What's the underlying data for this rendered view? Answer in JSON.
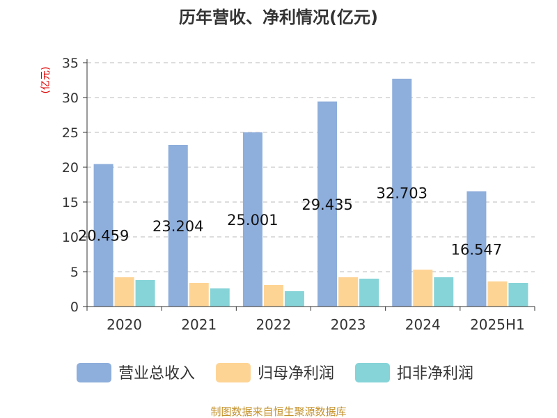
{
  "chart_data": {
    "type": "bar",
    "title": "历年营收、净利情况(亿元)",
    "ylabel": "(亿元)",
    "categories": [
      "2020",
      "2021",
      "2022",
      "2023",
      "2024",
      "2025H1"
    ],
    "ylim": [
      0,
      35
    ],
    "yticks": [
      "0",
      "5",
      "10",
      "15",
      "20",
      "25",
      "30",
      "35"
    ],
    "grid": true,
    "legend_position": "bottom",
    "series": [
      {
        "name": "营业总收入",
        "color": "#8eaedb",
        "values": [
          20.459,
          23.204,
          25.001,
          29.435,
          32.703,
          16.547
        ],
        "labels": [
          "20.459",
          "23.204",
          "25.001",
          "29.435",
          "32.703",
          "16.547"
        ]
      },
      {
        "name": "归母净利润",
        "color": "#fed495",
        "values": [
          4.2,
          3.4,
          3.1,
          4.2,
          5.3,
          3.6
        ]
      },
      {
        "name": "扣非净利润",
        "color": "#86d4d8",
        "values": [
          3.8,
          2.6,
          2.2,
          4.0,
          4.2,
          3.4
        ]
      }
    ]
  },
  "source": "制图数据来自恒生聚源数据库",
  "colors": {
    "unit_label": "#e00000",
    "source": "#c4922c",
    "axis": "#333333",
    "grid": "#bbbbbb"
  }
}
